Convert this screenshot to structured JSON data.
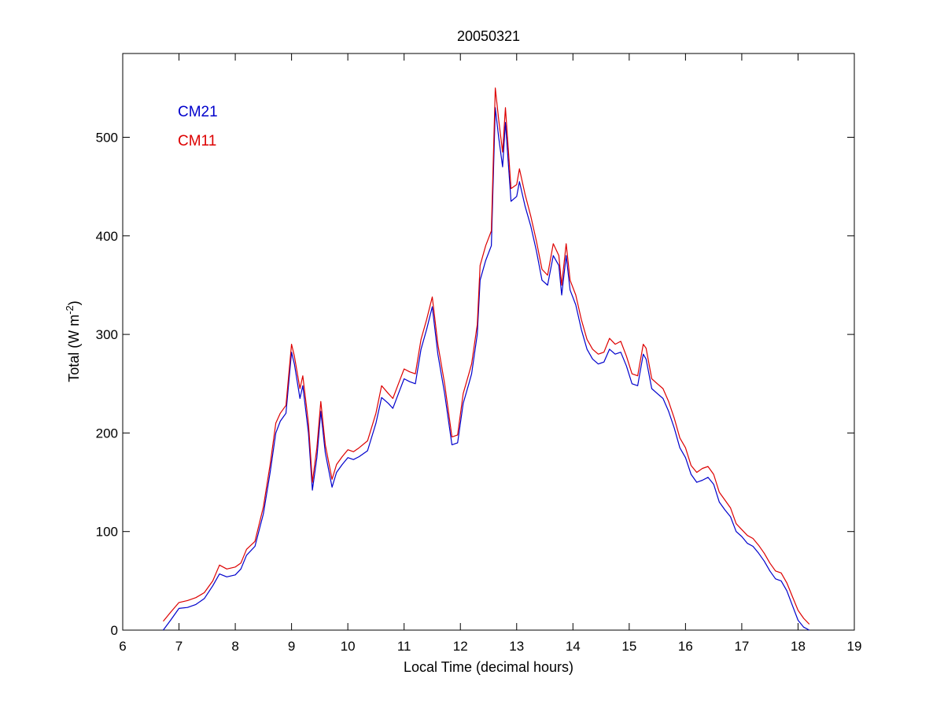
{
  "chart_data": {
    "type": "line",
    "title": "20050321",
    "xlabel": "Local Time (decimal hours)",
    "ylabel_main": "Total (W m",
    "ylabel_sup": "-2",
    "ylabel_close": ")",
    "xlim": [
      6,
      19
    ],
    "ylim": [
      0,
      585
    ],
    "xticks": [
      6,
      7,
      8,
      9,
      10,
      11,
      12,
      13,
      14,
      15,
      16,
      17,
      18,
      19
    ],
    "yticks": [
      0,
      100,
      200,
      300,
      400,
      500
    ],
    "grid": false,
    "legend_position": "top-left",
    "series": [
      {
        "name": "CM21",
        "color": "#0000cc",
        "x": [
          6.72,
          6.85,
          7.0,
          7.15,
          7.3,
          7.45,
          7.6,
          7.72,
          7.85,
          8.0,
          8.1,
          8.2,
          8.35,
          8.5,
          8.62,
          8.72,
          8.8,
          8.9,
          9.0,
          9.05,
          9.15,
          9.2,
          9.3,
          9.37,
          9.45,
          9.52,
          9.6,
          9.72,
          9.8,
          9.9,
          10.0,
          10.1,
          10.2,
          10.35,
          10.5,
          10.6,
          10.72,
          10.8,
          10.9,
          11.0,
          11.1,
          11.2,
          11.3,
          11.4,
          11.5,
          11.6,
          11.72,
          11.85,
          11.95,
          12.05,
          12.15,
          12.2,
          12.3,
          12.35,
          12.45,
          12.55,
          12.62,
          12.68,
          12.75,
          12.8,
          12.9,
          13.0,
          13.05,
          13.15,
          13.25,
          13.35,
          13.45,
          13.55,
          13.65,
          13.75,
          13.8,
          13.88,
          13.95,
          14.05,
          14.15,
          14.25,
          14.35,
          14.45,
          14.55,
          14.65,
          14.75,
          14.85,
          14.95,
          15.05,
          15.15,
          15.25,
          15.3,
          15.4,
          15.5,
          15.6,
          15.7,
          15.8,
          15.9,
          16.0,
          16.1,
          16.2,
          16.3,
          16.4,
          16.5,
          16.6,
          16.7,
          16.8,
          16.9,
          17.0,
          17.1,
          17.2,
          17.3,
          17.4,
          17.5,
          17.6,
          17.7,
          17.8,
          17.9,
          18.0,
          18.1,
          18.2
        ],
        "y": [
          0,
          10,
          22,
          23,
          26,
          32,
          45,
          57,
          54,
          56,
          62,
          76,
          85,
          118,
          160,
          200,
          212,
          220,
          282,
          270,
          235,
          248,
          200,
          142,
          175,
          222,
          180,
          145,
          160,
          168,
          175,
          173,
          176,
          182,
          210,
          236,
          230,
          225,
          240,
          255,
          252,
          250,
          285,
          305,
          328,
          280,
          240,
          188,
          190,
          230,
          250,
          260,
          300,
          355,
          375,
          390,
          530,
          500,
          470,
          515,
          435,
          440,
          455,
          430,
          410,
          385,
          355,
          350,
          380,
          370,
          340,
          380,
          345,
          330,
          305,
          285,
          275,
          270,
          272,
          285,
          280,
          282,
          268,
          250,
          248,
          280,
          275,
          245,
          240,
          235,
          222,
          205,
          185,
          175,
          158,
          150,
          152,
          155,
          148,
          130,
          122,
          115,
          100,
          95,
          88,
          85,
          78,
          70,
          60,
          52,
          50,
          40,
          25,
          10,
          3,
          0
        ]
      },
      {
        "name": "CM11",
        "color": "#dd0000",
        "x": [
          6.72,
          6.85,
          7.0,
          7.15,
          7.3,
          7.45,
          7.6,
          7.72,
          7.85,
          8.0,
          8.1,
          8.2,
          8.35,
          8.5,
          8.62,
          8.72,
          8.8,
          8.9,
          9.0,
          9.05,
          9.15,
          9.2,
          9.3,
          9.37,
          9.45,
          9.52,
          9.6,
          9.72,
          9.8,
          9.9,
          10.0,
          10.1,
          10.2,
          10.35,
          10.5,
          10.6,
          10.72,
          10.8,
          10.9,
          11.0,
          11.1,
          11.2,
          11.3,
          11.4,
          11.5,
          11.6,
          11.72,
          11.85,
          11.95,
          12.05,
          12.15,
          12.2,
          12.3,
          12.35,
          12.45,
          12.55,
          12.62,
          12.68,
          12.75,
          12.8,
          12.9,
          13.0,
          13.05,
          13.15,
          13.25,
          13.35,
          13.45,
          13.55,
          13.65,
          13.75,
          13.8,
          13.88,
          13.95,
          14.05,
          14.15,
          14.25,
          14.35,
          14.45,
          14.55,
          14.65,
          14.75,
          14.85,
          14.95,
          15.05,
          15.15,
          15.25,
          15.3,
          15.4,
          15.5,
          15.6,
          15.7,
          15.8,
          15.9,
          16.0,
          16.1,
          16.2,
          16.3,
          16.4,
          16.5,
          16.6,
          16.7,
          16.8,
          16.9,
          17.0,
          17.1,
          17.2,
          17.3,
          17.4,
          17.5,
          17.6,
          17.7,
          17.8,
          17.9,
          18.0,
          18.1,
          18.2
        ],
        "y": [
          9,
          18,
          28,
          30,
          33,
          38,
          50,
          66,
          62,
          64,
          68,
          82,
          90,
          125,
          168,
          210,
          220,
          228,
          290,
          278,
          245,
          258,
          210,
          150,
          185,
          232,
          188,
          153,
          168,
          176,
          183,
          181,
          185,
          192,
          220,
          248,
          240,
          235,
          250,
          265,
          262,
          260,
          295,
          315,
          338,
          290,
          250,
          196,
          198,
          240,
          260,
          270,
          310,
          370,
          390,
          405,
          550,
          518,
          485,
          530,
          448,
          452,
          468,
          442,
          420,
          395,
          366,
          360,
          392,
          380,
          350,
          392,
          355,
          340,
          315,
          295,
          285,
          280,
          282,
          296,
          290,
          293,
          278,
          260,
          258,
          290,
          286,
          255,
          250,
          245,
          232,
          215,
          195,
          185,
          167,
          160,
          164,
          166,
          158,
          140,
          132,
          124,
          108,
          102,
          96,
          93,
          86,
          78,
          68,
          60,
          58,
          48,
          34,
          20,
          12,
          6
        ]
      }
    ]
  }
}
